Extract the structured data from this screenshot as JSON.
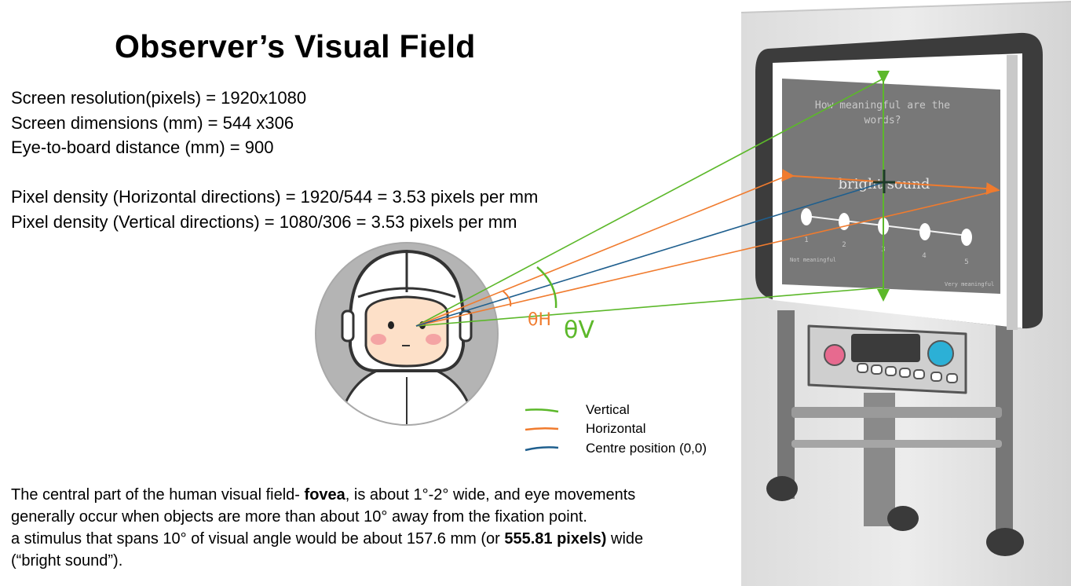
{
  "title": "Observer’s Visual Field",
  "specs": {
    "resolution": "Screen resolution(pixels) = 1920x1080",
    "dimensions": "Screen dimensions (mm) = 544 x306",
    "distance": "Eye-to-board distance (mm) = 900",
    "density_h": "Pixel density (Horizontal directions) = 1920/544 = 3.53 pixels per mm",
    "density_v": "Pixel density (Vertical directions) = 1080/306 = 3.53 pixels per mm"
  },
  "angles": {
    "horizontal": "θH",
    "vertical": "θV"
  },
  "screen": {
    "question": [
      "How meaningful are the",
      "words?"
    ],
    "stimulus": "bright sound",
    "scale_numbers": [
      "1",
      "2",
      "3",
      "4",
      "5"
    ],
    "left_anchor": "Not meaningful",
    "right_anchor": "Very meaningful"
  },
  "legend": [
    {
      "label": "Vertical",
      "color": "#5cb82a"
    },
    {
      "label": "Horizontal",
      "color": "#f07b2e"
    },
    {
      "label": "Centre position (0,0)",
      "color": "#1f5f8e"
    }
  ],
  "footer": {
    "line1_pre": "The central part of the human visual field- ",
    "line1_bold": "fovea",
    "line1_post": ", is about 1°-2° wide, and eye movements",
    "line2": "generally occur when objects are more than about 10° away from the fixation point.",
    "line3_pre": "a stimulus that spans 10° of visual angle would be about 157.6 mm (or ",
    "line3_bold": "555.81 pixels)",
    "line3_post": " wide",
    "line4": "(“bright sound”)."
  }
}
